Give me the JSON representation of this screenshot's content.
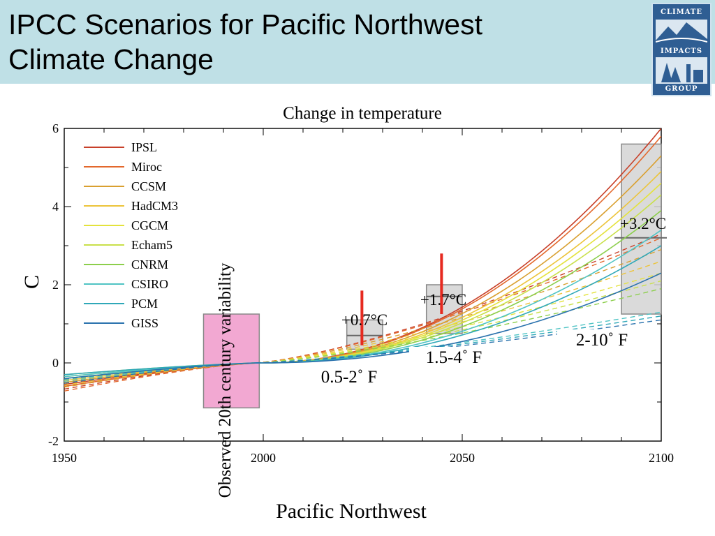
{
  "slide": {
    "title_line1": "IPCC Scenarios for Pacific Northwest",
    "title_line2": "Climate Change"
  },
  "logo": {
    "top": "CLIMATE",
    "mid": "IMPACTS",
    "bottom": "GROUP"
  },
  "chart_data": {
    "type": "line",
    "title": "Change in temperature",
    "xlabel": "Pacific Northwest",
    "ylabel": "C",
    "xlim": [
      1950,
      2100
    ],
    "ylim": [
      -2,
      6
    ],
    "xticks": [
      "1950",
      "2000",
      "2050",
      "2100"
    ],
    "yticks": [
      "6",
      "4",
      "2",
      "0",
      "-2"
    ],
    "legend_position": "top-left",
    "series": [
      {
        "name": "IPSL",
        "color": "#c8402a",
        "end_solid": 6.0,
        "end_dashed": 3.3,
        "start": -0.55
      },
      {
        "name": "Miroc",
        "color": "#e3682c",
        "end_solid": 5.8,
        "end_dashed": 3.2,
        "start": -0.6
      },
      {
        "name": "CCSM",
        "color": "#d9a030",
        "end_solid": 5.3,
        "end_dashed": 2.9,
        "start": -0.5
      },
      {
        "name": "HadCM3",
        "color": "#ecc43a",
        "end_solid": 4.9,
        "end_dashed": 2.6,
        "start": -0.45
      },
      {
        "name": "CGCM",
        "color": "#e4e23c",
        "end_solid": 4.6,
        "end_dashed": 2.3,
        "start": -0.4
      },
      {
        "name": "Echam5",
        "color": "#c9e04a",
        "end_solid": 4.3,
        "end_dashed": 2.1,
        "start": -0.35
      },
      {
        "name": "CNRM",
        "color": "#8ccf4c",
        "end_solid": 3.9,
        "end_dashed": 1.9,
        "start": -0.3
      },
      {
        "name": "CSIRO",
        "color": "#4fc4c4",
        "end_solid": 3.4,
        "end_dashed": 1.3,
        "start": -0.35
      },
      {
        "name": "PCM",
        "color": "#2fa8b8",
        "end_solid": 3.0,
        "end_dashed": 1.2,
        "start": -0.3
      },
      {
        "name": "GISS",
        "color": "#2a72ad",
        "end_solid": 2.3,
        "end_dashed": 1.1,
        "start": -0.4
      }
    ],
    "variability_box": {
      "x0": 1985,
      "x1": 1999,
      "y0": -1.15,
      "y1": 1.25,
      "label": "Observed 20th century variability"
    },
    "projection_boxes": [
      {
        "x0": 2021,
        "x1": 2030,
        "y0": 0.35,
        "y1": 1.1,
        "mean": 0.7,
        "bar_top": 1.85,
        "bar_bottom": 0.45,
        "label_c": "+0.7°C",
        "label_f": "0.5-2˚ F"
      },
      {
        "x0": 2041,
        "x1": 2050,
        "y0": 0.75,
        "y1": 2.0,
        "mean": 1.7,
        "bar_top": 2.8,
        "bar_bottom": 1.25,
        "label_c": "+1.7°C",
        "label_f": "1.5-4˚ F"
      },
      {
        "x0": 2090,
        "x1": 2100,
        "y0": 1.25,
        "y1": 5.6,
        "mean": 3.2,
        "label_c": "+3.2°C",
        "label_f": "2-10˚ F"
      }
    ]
  }
}
